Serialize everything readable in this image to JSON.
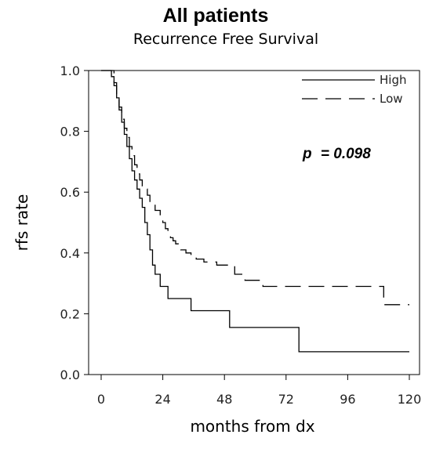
{
  "chart_data": {
    "type": "line",
    "step": true,
    "title": "All patients",
    "subtitle": "Recurrence Free Survival",
    "xlabel": "months from dx",
    "ylabel": "rfs rate",
    "xlim": [
      0,
      120
    ],
    "ylim": [
      0,
      1.0
    ],
    "xticks": [
      "0",
      "24",
      "48",
      "72",
      "96",
      "120"
    ],
    "yticks": [
      "0.0",
      "0.2",
      "0.4",
      "0.6",
      "0.8",
      "1.0"
    ],
    "grid": false,
    "legend_position": "top-right",
    "annotation": {
      "p_label": "p",
      "p_value": "= 0.098"
    },
    "series": [
      {
        "name": "High",
        "style": "solid",
        "x": [
          0,
          3,
          4,
          5,
          6,
          7,
          8,
          9,
          10,
          11,
          12,
          13,
          14,
          15,
          16,
          17,
          18,
          19,
          20,
          21,
          23,
          26,
          30,
          35,
          50,
          77,
          120
        ],
        "y": [
          1.0,
          1.0,
          0.98,
          0.95,
          0.91,
          0.87,
          0.83,
          0.79,
          0.75,
          0.71,
          0.67,
          0.64,
          0.61,
          0.58,
          0.55,
          0.5,
          0.46,
          0.41,
          0.36,
          0.33,
          0.29,
          0.25,
          0.25,
          0.21,
          0.155,
          0.075,
          0.075
        ]
      },
      {
        "name": "Low",
        "style": "dashed",
        "x": [
          0,
          3,
          5,
          6,
          7,
          8,
          9,
          10,
          11,
          12,
          13,
          14,
          15,
          16,
          17,
          18,
          19,
          21,
          23,
          24,
          25,
          26,
          27,
          28,
          29,
          30,
          31,
          33,
          35,
          37,
          40,
          45,
          52,
          56,
          63,
          80,
          110,
          120
        ],
        "y": [
          1.0,
          1.0,
          0.96,
          0.92,
          0.88,
          0.84,
          0.81,
          0.78,
          0.75,
          0.72,
          0.69,
          0.66,
          0.64,
          0.62,
          0.61,
          0.59,
          0.56,
          0.54,
          0.52,
          0.5,
          0.48,
          0.46,
          0.45,
          0.44,
          0.43,
          0.42,
          0.41,
          0.4,
          0.39,
          0.38,
          0.37,
          0.36,
          0.33,
          0.31,
          0.29,
          0.29,
          0.23,
          0.23
        ]
      }
    ]
  }
}
